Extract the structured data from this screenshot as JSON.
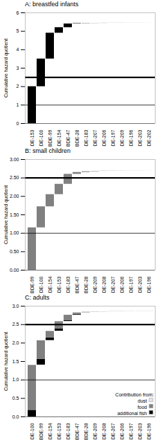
{
  "chart_data": [
    {
      "type": "waterfall",
      "stacked": true,
      "title": "A: breastfed infants",
      "y_label": "Cumulative hazard quotient",
      "categories": [
        "BDE-153",
        "BDE-100",
        "BDE-99",
        "BDE-154",
        "BDE-47",
        "BDE-28",
        "BDE-183",
        "BDE-207",
        "BDE-206",
        "BDE-197",
        "BDE-209",
        "BDE-196",
        "BDE-203",
        "BDE-202"
      ],
      "series": [
        {
          "color": "#000000",
          "values": [
            2.0,
            1.5,
            1.4,
            0.3,
            0.2,
            0.02,
            0.01,
            0.005,
            0.005,
            0.003,
            0.003,
            0.002,
            0.002,
            0.001
          ]
        }
      ],
      "reference_lines": [
        1,
        2.5
      ],
      "ylim": [
        0,
        6
      ],
      "yticks": [
        0,
        1,
        2,
        3,
        4,
        5,
        6
      ]
    },
    {
      "type": "waterfall",
      "stacked": true,
      "title": "B: small children",
      "y_label": "Cumulative hazard quotient",
      "categories": [
        "BDE-99",
        "BDE-100",
        "BDE-154",
        "BDE-153",
        "BDE-183",
        "BDE-47",
        "BDE-28",
        "BDE-209",
        "BDE-208",
        "BDE-207",
        "BDE-206",
        "BDE-197",
        "BDE-203",
        "BDE-196"
      ],
      "series": [
        {
          "color": "#808080",
          "values": [
            1.15,
            0.57,
            0.33,
            0.28,
            0.27,
            0.05,
            0.02,
            0.01,
            0.005,
            0.004,
            0.003,
            0.002,
            0.002,
            0.001
          ]
        }
      ],
      "reference_lines": [
        1,
        2.5
      ],
      "ylim": [
        0,
        3
      ],
      "yticks": [
        {
          "value": 0,
          "label": "0.00"
        },
        {
          "value": 0.5,
          "label": "0.50"
        },
        {
          "value": 1,
          "label": "1.00"
        },
        {
          "value": 1.5,
          "label": "1.50"
        },
        {
          "value": 2,
          "label": "2.00"
        },
        {
          "value": 2.5,
          "label": "2.50"
        },
        {
          "value": 3,
          "label": "3.00"
        }
      ]
    },
    {
      "type": "waterfall",
      "stacked": true,
      "title": "C: adults",
      "y_label": "Cumulative hazard quotient",
      "categories": [
        "BDE-100",
        "BDE-99",
        "BDE-154",
        "BDE-153",
        "BDE-183",
        "BDE-47",
        "BDE-28",
        "BDE-209",
        "BDE-208",
        "BDE-207",
        "BDE-206",
        "BDE-197",
        "BDE-203",
        "BDE-196"
      ],
      "series": [
        {
          "name": "dust",
          "color": "#e6e6e6",
          "values": [
            0.005,
            0.005,
            0.003,
            0.003,
            0.003,
            0.005,
            0.001,
            0.002,
            0.001,
            0.001,
            0.001,
            0.001,
            0.001,
            0.001
          ]
        },
        {
          "name": "food",
          "color": "#808080",
          "values": [
            1.22,
            0.5,
            0.18,
            0.2,
            0.15,
            0.04,
            0.01,
            0.005,
            0.003,
            0.002,
            0.002,
            0.001,
            0.001,
            0.001
          ]
        },
        {
          "name": "additional fish",
          "color": "#000000",
          "values": [
            0.18,
            0.16,
            0.07,
            0.06,
            0.02,
            0.02,
            0.003,
            0.001,
            0.001,
            0.001,
            0.001,
            0.001,
            0.001,
            0.001
          ]
        }
      ],
      "reference_lines": [
        1,
        2.5
      ],
      "legend": "bottom-right",
      "legend_title": "Contribution from:",
      "ylim": [
        0,
        3
      ],
      "yticks": [
        {
          "value": 0,
          "label": "0.0"
        },
        {
          "value": 0.5,
          "label": "0.5"
        },
        {
          "value": 1,
          "label": "1.0"
        },
        {
          "value": 1.5,
          "label": "1.5"
        },
        {
          "value": 2,
          "label": "2.0"
        },
        {
          "value": 2.5,
          "label": "2.5"
        },
        {
          "value": 3,
          "label": "3.0"
        }
      ]
    }
  ]
}
